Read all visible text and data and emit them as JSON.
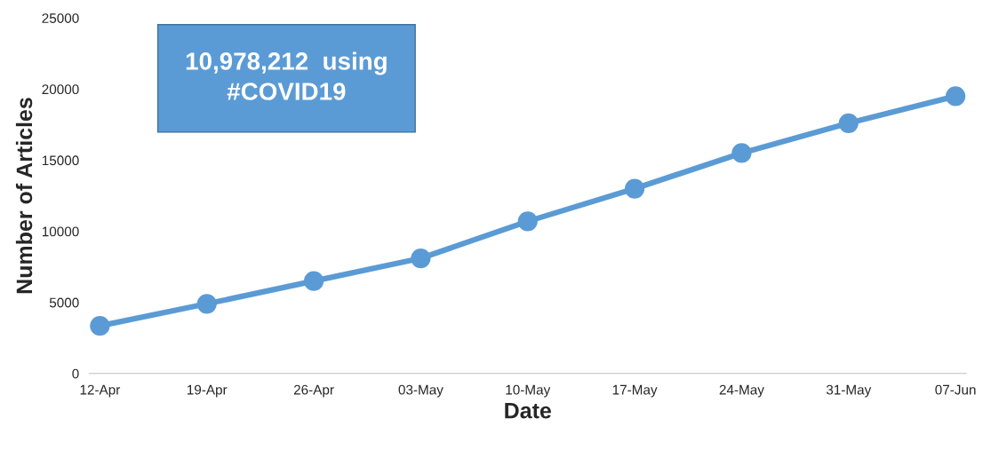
{
  "chart_data": {
    "type": "line",
    "xlabel": "Date",
    "ylabel": "Number of Articles",
    "categories": [
      "12-Apr",
      "19-Apr",
      "26-Apr",
      "03-May",
      "10-May",
      "17-May",
      "24-May",
      "31-May",
      "07-Jun"
    ],
    "series": [
      {
        "color": "#5b9bd5",
        "values": [
          3350,
          4900,
          6500,
          8100,
          10700,
          13000,
          15500,
          17600,
          19500
        ]
      }
    ],
    "ylim": [
      0,
      25000
    ],
    "yticks": [
      0,
      5000,
      10000,
      15000,
      20000,
      25000
    ],
    "grid": false,
    "legend": false,
    "marker": "circle",
    "line_style": "solid",
    "annotations": [
      "10,978,212  using\n#COVID19"
    ]
  }
}
